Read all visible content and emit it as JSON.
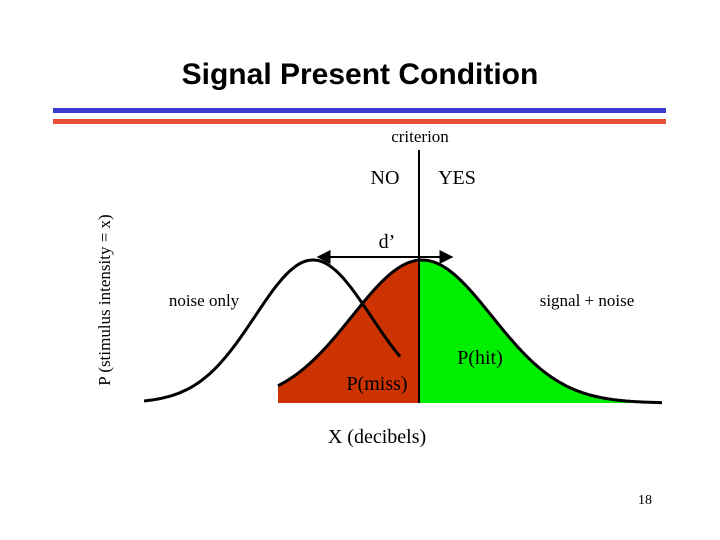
{
  "slide": {
    "title": "Signal Present Condition",
    "page_number": "18",
    "rule_colors": {
      "top": "#3a3acd",
      "bottom": "#e8503a"
    }
  },
  "diagram": {
    "y_axis_label": "P (stimulus intensity = x)",
    "x_axis_label": "X (decibels)",
    "criterion_label": "criterion",
    "no_label": "NO",
    "yes_label": "YES",
    "dprime_label": "d’",
    "noise_label": "noise only",
    "signal_label": "signal +  noise",
    "miss_label": "P(miss)",
    "hit_label": "P(hit)",
    "colors": {
      "miss_fill": "#cc3300",
      "hit_fill": "#00ee00",
      "curves": "#000000"
    }
  }
}
